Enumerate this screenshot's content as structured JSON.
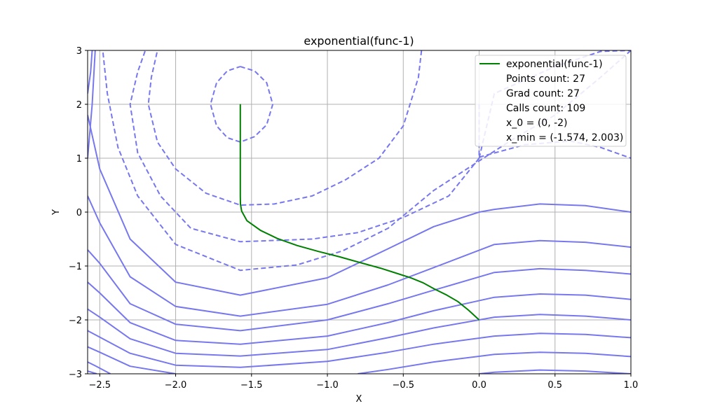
{
  "chart_data": {
    "type": "line",
    "title": "exponential(func-1)",
    "xlabel": "X",
    "ylabel": "Y",
    "xlim": [
      -2.58,
      1.0
    ],
    "ylim": [
      -3,
      3
    ],
    "grid": true,
    "legend_placement": "top-right",
    "x_ticks": [
      "−2.5",
      "−2.0",
      "−1.5",
      "−1.0",
      "−0.5",
      "0.0",
      "0.5",
      "1.0"
    ],
    "x_tick_values": [
      -2.5,
      -2.0,
      -1.5,
      -1.0,
      -0.5,
      0.0,
      0.5,
      1.0
    ],
    "y_ticks": [
      "−3",
      "−2",
      "−1",
      "0",
      "1",
      "2",
      "3"
    ],
    "y_tick_values": [
      -3,
      -2,
      -1,
      0,
      1,
      2,
      3
    ],
    "contour_color": "#7777ee",
    "path_color": "#008000",
    "path": {
      "name": "exponential(func-1)",
      "x": [
        0.0,
        -0.07,
        -0.14,
        -0.22,
        -0.3,
        -0.37,
        -0.45,
        -0.55,
        -0.65,
        -0.78,
        -0.92,
        -1.06,
        -1.2,
        -1.33,
        -1.44,
        -1.53,
        -1.565,
        -1.573,
        -1.574,
        -1.574,
        -1.574,
        -1.574,
        -1.574,
        -1.574,
        -1.574,
        -1.574,
        -1.574
      ],
      "y": [
        -2.0,
        -1.82,
        -1.66,
        -1.53,
        -1.42,
        -1.31,
        -1.22,
        -1.13,
        -1.04,
        -0.94,
        -0.83,
        -0.73,
        -0.62,
        -0.49,
        -0.34,
        -0.16,
        0.02,
        0.15,
        0.3,
        0.5,
        0.75,
        1.0,
        1.25,
        1.5,
        1.75,
        1.9,
        2.003
      ]
    },
    "legend_entries": [
      "exponential(func-1)",
      "Points count: 27",
      "Grad count: 27",
      "Calls count: 109",
      "x_0 = (0, -2)",
      "x_min = (-1.574, 2.003)"
    ],
    "contours": [
      {
        "style": "dashed",
        "points": [
          [
            -1.574,
            2.7
          ],
          [
            -1.48,
            2.62
          ],
          [
            -1.4,
            2.4
          ],
          [
            -1.36,
            2.0
          ],
          [
            -1.4,
            1.62
          ],
          [
            -1.48,
            1.4
          ],
          [
            -1.574,
            1.3
          ],
          [
            -1.66,
            1.38
          ],
          [
            -1.73,
            1.6
          ],
          [
            -1.77,
            2.0
          ],
          [
            -1.73,
            2.4
          ],
          [
            -1.66,
            2.62
          ],
          [
            -1.574,
            2.7
          ]
        ]
      },
      {
        "style": "dashed",
        "points": [
          [
            -0.38,
            3.0
          ],
          [
            -0.4,
            2.5
          ],
          [
            -0.5,
            1.6
          ],
          [
            -0.66,
            1.0
          ],
          [
            -0.88,
            0.6
          ],
          [
            -1.1,
            0.3
          ],
          [
            -1.35,
            0.15
          ],
          [
            -1.574,
            0.13
          ],
          [
            -1.8,
            0.35
          ],
          [
            -2.0,
            0.8
          ],
          [
            -2.12,
            1.3
          ],
          [
            -2.18,
            2.0
          ],
          [
            -2.16,
            2.5
          ],
          [
            -2.12,
            3.0
          ]
        ]
      },
      {
        "style": "dashed",
        "points": [
          [
            0.0,
            2.0
          ],
          [
            0.0,
            1.0
          ],
          [
            -0.2,
            0.3
          ],
          [
            -0.5,
            -0.1
          ],
          [
            -0.8,
            -0.38
          ],
          [
            -1.1,
            -0.5
          ],
          [
            -1.574,
            -0.55
          ],
          [
            -1.9,
            -0.3
          ],
          [
            -2.1,
            0.3
          ],
          [
            -2.25,
            1.1
          ],
          [
            -2.3,
            2.0
          ],
          [
            -2.25,
            2.6
          ],
          [
            -2.2,
            3.0
          ]
        ]
      },
      {
        "style": "dashed",
        "points": [
          [
            1.0,
            3.0
          ],
          [
            0.8,
            2.5
          ],
          [
            0.5,
            1.8
          ],
          [
            0.25,
            1.4
          ],
          [
            0.0,
            0.95
          ],
          [
            -0.3,
            0.4
          ],
          [
            -0.6,
            -0.3
          ],
          [
            -0.9,
            -0.72
          ],
          [
            -1.2,
            -0.98
          ],
          [
            -1.574,
            -1.08
          ],
          [
            -2.0,
            -0.6
          ],
          [
            -2.25,
            0.3
          ],
          [
            -2.38,
            1.2
          ],
          [
            -2.45,
            2.2
          ],
          [
            -2.48,
            3.0
          ]
        ]
      },
      {
        "style": "dashed",
        "points": [
          [
            0.0,
            1.02
          ],
          [
            0.3,
            1.25
          ],
          [
            0.6,
            1.32
          ],
          [
            0.8,
            1.2
          ],
          [
            1.0,
            1.0
          ]
        ]
      },
      {
        "style": "dashed",
        "points": [
          [
            0.0,
            1.0
          ],
          [
            0.1,
            2.2
          ],
          [
            0.5,
            2.7
          ],
          [
            0.8,
            2.98
          ],
          [
            1.0,
            3.0
          ]
        ]
      },
      {
        "style": "solid",
        "points": [
          [
            1.0,
            0.0
          ],
          [
            0.7,
            0.12
          ],
          [
            0.4,
            0.15
          ],
          [
            0.1,
            0.05
          ],
          [
            0.0,
            0.0
          ],
          [
            -0.3,
            -0.27
          ],
          [
            -0.6,
            -0.68
          ],
          [
            -1.0,
            -1.22
          ],
          [
            -1.574,
            -1.54
          ],
          [
            -2.0,
            -1.3
          ],
          [
            -2.3,
            -0.5
          ],
          [
            -2.5,
            0.8
          ],
          [
            -2.58,
            1.8
          ]
        ]
      },
      {
        "style": "solid",
        "points": [
          [
            1.0,
            -0.65
          ],
          [
            0.7,
            -0.56
          ],
          [
            0.4,
            -0.53
          ],
          [
            0.1,
            -0.6
          ],
          [
            -0.3,
            -1.03
          ],
          [
            -0.6,
            -1.35
          ],
          [
            -1.0,
            -1.71
          ],
          [
            -1.574,
            -1.93
          ],
          [
            -2.0,
            -1.75
          ],
          [
            -2.3,
            -1.2
          ],
          [
            -2.5,
            -0.2
          ],
          [
            -2.58,
            0.3
          ]
        ]
      },
      {
        "style": "solid",
        "points": [
          [
            1.0,
            -1.15
          ],
          [
            0.7,
            -1.08
          ],
          [
            0.4,
            -1.05
          ],
          [
            0.1,
            -1.12
          ],
          [
            -0.3,
            -1.45
          ],
          [
            -0.6,
            -1.7
          ],
          [
            -1.0,
            -2.0
          ],
          [
            -1.574,
            -2.2
          ],
          [
            -2.0,
            -2.08
          ],
          [
            -2.3,
            -1.7
          ],
          [
            -2.5,
            -0.95
          ],
          [
            -2.58,
            -0.7
          ]
        ]
      },
      {
        "style": "solid",
        "points": [
          [
            1.0,
            -1.62
          ],
          [
            0.7,
            -1.54
          ],
          [
            0.4,
            -1.52
          ],
          [
            0.1,
            -1.58
          ],
          [
            -0.3,
            -1.83
          ],
          [
            -0.6,
            -2.05
          ],
          [
            -1.0,
            -2.3
          ],
          [
            -1.574,
            -2.45
          ],
          [
            -2.0,
            -2.38
          ],
          [
            -2.3,
            -2.05
          ],
          [
            -2.5,
            -1.5
          ],
          [
            -2.58,
            -1.3
          ]
        ]
      },
      {
        "style": "solid",
        "points": [
          [
            1.0,
            -2.0
          ],
          [
            0.7,
            -1.93
          ],
          [
            0.4,
            -1.9
          ],
          [
            0.1,
            -1.95
          ],
          [
            -0.3,
            -2.15
          ],
          [
            -0.6,
            -2.33
          ],
          [
            -1.0,
            -2.55
          ],
          [
            -1.574,
            -2.67
          ],
          [
            -2.0,
            -2.62
          ],
          [
            -2.3,
            -2.35
          ],
          [
            -2.5,
            -1.95
          ],
          [
            -2.58,
            -1.8
          ]
        ]
      },
      {
        "style": "solid",
        "points": [
          [
            1.0,
            -2.33
          ],
          [
            0.7,
            -2.27
          ],
          [
            0.4,
            -2.25
          ],
          [
            0.1,
            -2.3
          ],
          [
            -0.3,
            -2.45
          ],
          [
            -0.6,
            -2.6
          ],
          [
            -1.0,
            -2.77
          ],
          [
            -1.574,
            -2.88
          ],
          [
            -2.0,
            -2.84
          ],
          [
            -2.3,
            -2.62
          ],
          [
            -2.5,
            -2.32
          ],
          [
            -2.58,
            -2.2
          ]
        ]
      },
      {
        "style": "solid",
        "points": [
          [
            1.0,
            -2.68
          ],
          [
            0.7,
            -2.62
          ],
          [
            0.4,
            -2.6
          ],
          [
            0.1,
            -2.64
          ],
          [
            -0.3,
            -2.78
          ],
          [
            -0.6,
            -2.92
          ],
          [
            -0.8,
            -3.0
          ]
        ]
      },
      {
        "style": "solid",
        "points": [
          [
            -2.0,
            -3.0
          ],
          [
            -2.3,
            -2.86
          ],
          [
            -2.5,
            -2.6
          ],
          [
            -2.58,
            -2.5
          ]
        ]
      },
      {
        "style": "solid",
        "points": [
          [
            1.0,
            -3.0
          ],
          [
            0.7,
            -2.95
          ],
          [
            0.4,
            -2.93
          ],
          [
            0.1,
            -2.97
          ],
          [
            0.0,
            -3.0
          ]
        ]
      },
      {
        "style": "solid",
        "points": [
          [
            -2.43,
            -3.0
          ],
          [
            -2.53,
            -2.85
          ],
          [
            -2.58,
            -2.78
          ]
        ]
      },
      {
        "style": "solid",
        "points": [
          [
            -2.52,
            -3.0
          ],
          [
            -2.58,
            -2.95
          ]
        ]
      },
      {
        "style": "solid",
        "points": [
          [
            -2.58,
            1.0
          ],
          [
            -2.55,
            2.0
          ],
          [
            -2.53,
            3.0
          ]
        ]
      },
      {
        "style": "solid",
        "points": [
          [
            -2.58,
            2.2
          ],
          [
            -2.56,
            2.6
          ],
          [
            -2.55,
            3.0
          ]
        ]
      }
    ]
  }
}
